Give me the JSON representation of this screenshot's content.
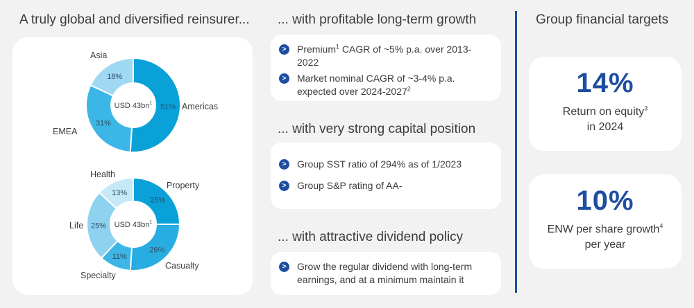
{
  "left": {
    "title": "A truly global and diversified reinsurer...",
    "donut1": {
      "center": "USD 43bn",
      "center_sup": "1",
      "segments": [
        {
          "name": "Americas",
          "value": 51,
          "label": "51%",
          "color": "#0aa0d8"
        },
        {
          "name": "EMEA",
          "value": 31,
          "label": "31%",
          "color": "#3bb6e6"
        },
        {
          "name": "Asia",
          "value": 18,
          "label": "18%",
          "color": "#9fd8f2"
        }
      ]
    },
    "donut2": {
      "center": "USD 43bn",
      "center_sup": "1",
      "segments": [
        {
          "name": "Property",
          "value": 25,
          "label": "25%",
          "color": "#0aa0d8"
        },
        {
          "name": "Casualty",
          "value": 26,
          "label": "26%",
          "color": "#28ade2"
        },
        {
          "name": "Specialty",
          "value": 11,
          "label": "11%",
          "color": "#3bb6e6"
        },
        {
          "name": "Life",
          "value": 25,
          "label": "25%",
          "color": "#8fd2f0"
        },
        {
          "name": "Health",
          "value": 13,
          "label": "13%",
          "color": "#c6e8f7"
        }
      ]
    }
  },
  "middle": {
    "growth": {
      "title": "... with profitable long-term growth",
      "b1": {
        "pre": "Premium",
        "sup": "1",
        "post": " CAGR of ~5% p.a. over 2013-2022"
      },
      "b2": {
        "text": "Market nominal CAGR of ~3-4% p.a. expected over 2024-2027",
        "sup": "2"
      }
    },
    "capital": {
      "title": "... with very strong capital position",
      "b1": "Group SST ratio of 294% as of 1/2023",
      "b2": "Group S&P rating of AA-"
    },
    "dividend": {
      "title": "... with attractive dividend policy",
      "b1": "Grow the regular dividend with long-term earnings, and at a minimum maintain it"
    }
  },
  "right": {
    "title": "Group financial targets",
    "roe": {
      "value": "14%",
      "label": "Return on equity",
      "sup": "3",
      "label2": "in 2024"
    },
    "enw": {
      "value": "10%",
      "label": "ENW per share growth",
      "sup": "4",
      "label2": "per year"
    }
  },
  "icons": {
    "bullet": "chevron-right-icon"
  },
  "colors": {
    "accent": "#1e4ea0",
    "background": "#f2f2f2",
    "card": "#ffffff"
  }
}
